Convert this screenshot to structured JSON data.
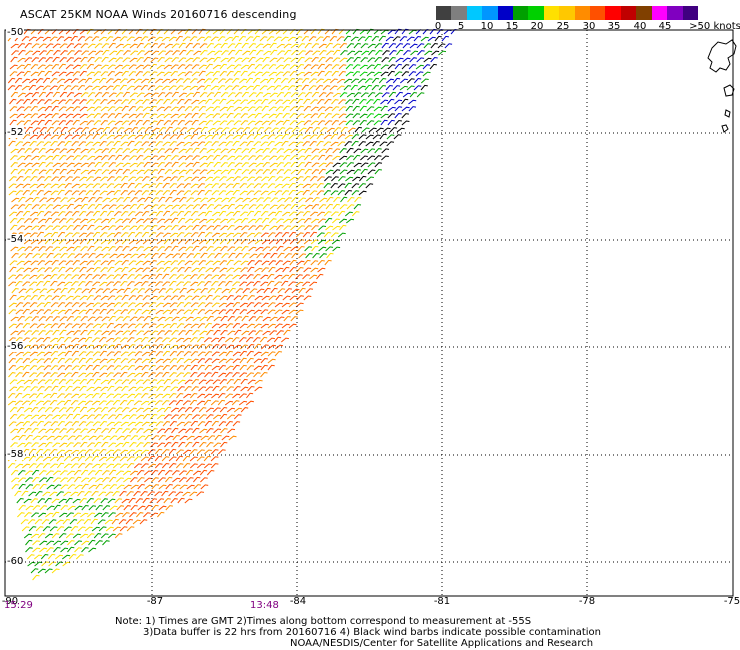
{
  "title": "ASCAT 25KM NOAA Winds 20160716 descending",
  "color_scale": {
    "unit_label": ">50 knots",
    "colors": [
      "#404040",
      "#7f7f7f",
      "#00c8ff",
      "#0096ff",
      "#0000c8",
      "#00a000",
      "#00d000",
      "#ffe000",
      "#ffc800",
      "#ff8c00",
      "#ff5000",
      "#ff0000",
      "#c00000",
      "#804000",
      "#ff00ff",
      "#8000c0",
      "#400080"
    ],
    "labels": [
      "0",
      "5",
      "10",
      "15",
      "20",
      "25",
      "30",
      "35",
      "40",
      "45",
      ">50 knots"
    ]
  },
  "lat_labels": [
    "-50",
    "-52",
    "-54",
    "-56",
    "-58",
    "-60"
  ],
  "lon_labels": [
    "-90",
    "-87",
    "-84",
    "-81",
    "-78",
    "-75"
  ],
  "time_labels": [
    "15:29",
    "13:48"
  ],
  "notes": [
    "Note: 1) Times are GMT 2)Times along bottom correspond to measurement at -55S",
    "3)Data buffer is 22 hrs from 20160716 4) Black wind barbs indicate possible contamination",
    "NOAA/NESDIS/Center for Satellite Applications and Research"
  ]
}
